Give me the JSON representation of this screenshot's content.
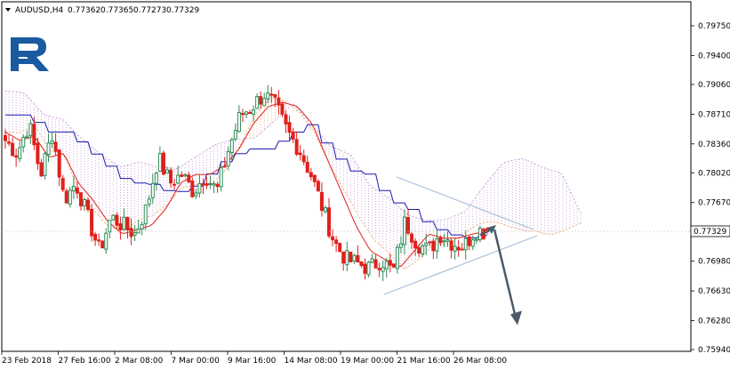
{
  "header": {
    "symbol": "AUDUSD,H4",
    "open": "0.77362",
    "high": "0.77365",
    "low": "0.77273",
    "close": "0.77329"
  },
  "logo": {
    "text": "R"
  },
  "price_axis": {
    "ticks": [
      "0.79750",
      "0.79400",
      "0.79060",
      "0.78710",
      "0.78360",
      "0.78020",
      "0.77670",
      "0.77329",
      "0.76980",
      "0.76630",
      "0.76280",
      "0.75940"
    ],
    "current_price": "0.77329"
  },
  "time_axis": {
    "labels": [
      "23 Feb 2018",
      "27 Feb 16:00",
      "2 Mar 08:00",
      "7 Mar 00:00",
      "9 Mar 16:00",
      "14 Mar 08:00",
      "19 Mar 00:00",
      "21 Mar 16:00",
      "26 Mar 08:00"
    ]
  },
  "colors": {
    "bull": "#2e8b57",
    "bear": "#e0201b",
    "tenkan": "#e0201b",
    "kijun": "#1a1ab0",
    "cloud_up": "#f0a060",
    "cloud_down": "#c090d0",
    "arrow": "#4a5a6a",
    "triangle": "#a8c0d8",
    "logo": "#1a5aa0"
  },
  "chart_data": {
    "type": "candlestick",
    "symbol": "AUDUSD",
    "timeframe": "H4",
    "ylim": [
      0.7594,
      0.7998
    ],
    "y_ticks": [
      0.7975,
      0.794,
      0.7906,
      0.7871,
      0.7836,
      0.7802,
      0.7767,
      0.7733,
      0.7698,
      0.7663,
      0.7628,
      0.7594
    ],
    "ohlc_close_path": [
      0.784,
      0.7825,
      0.786,
      0.78,
      0.785,
      0.777,
      0.779,
      0.775,
      0.771,
      0.775,
      0.774,
      0.773,
      0.776,
      0.782,
      0.779,
      0.78,
      0.778,
      0.78,
      0.778,
      0.783,
      0.787,
      0.788,
      0.7895,
      0.788,
      0.785,
      0.783,
      0.78,
      0.776,
      0.772,
      0.77,
      0.7695,
      0.769,
      0.77,
      0.7685,
      0.7745,
      0.772,
      0.771,
      0.773,
      0.772,
      0.7715,
      0.7735,
      0.7733
    ],
    "tenkan_path": [
      0.785,
      0.784,
      0.7845,
      0.782,
      0.7825,
      0.779,
      0.777,
      0.7745,
      0.773,
      0.7735,
      0.774,
      0.776,
      0.779,
      0.78,
      0.78,
      0.781,
      0.783,
      0.786,
      0.788,
      0.7885,
      0.788,
      0.786,
      0.782,
      0.778,
      0.774,
      0.771,
      0.77,
      0.769,
      0.771,
      0.773,
      0.7725,
      0.7725,
      0.773,
      0.7733
    ],
    "kijun_path": [
      0.787,
      0.787,
      0.785,
      0.785,
      0.783,
      0.781,
      0.779,
      0.779,
      0.778,
      0.778,
      0.78,
      0.782,
      0.783,
      0.783,
      0.7845,
      0.786,
      0.783,
      0.7805,
      0.78,
      0.777,
      0.776,
      0.774,
      0.773,
      0.7725,
      0.773
    ],
    "forecast": {
      "direction": "down",
      "from": 0.7733,
      "to": 0.7625
    },
    "pattern": "triangle"
  }
}
